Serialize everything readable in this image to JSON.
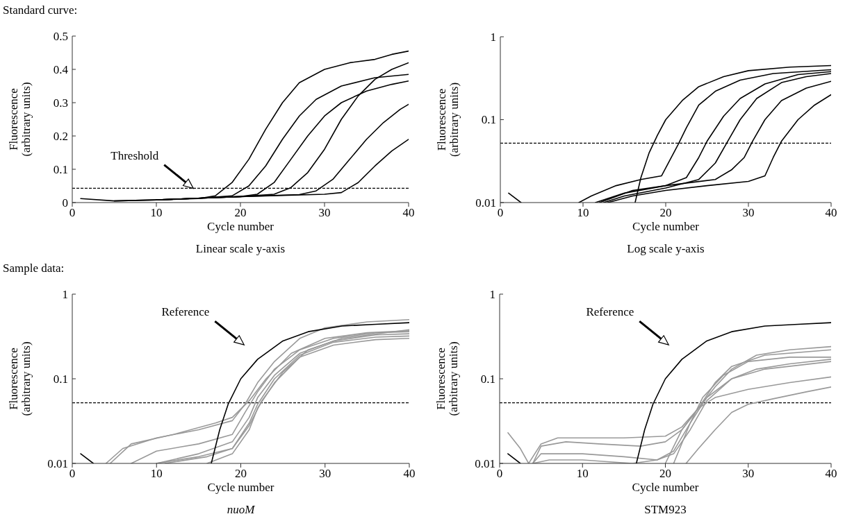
{
  "chart_data": [
    {
      "type": "line",
      "subtitle": "Linear scale y-axis",
      "xlabel": "Cycle number",
      "ylabel": "Fluorescence\n(arbitrary units)",
      "xlim": [
        0,
        40
      ],
      "xticks": [
        0,
        10,
        20,
        30,
        40
      ],
      "ylim": [
        0,
        0.5
      ],
      "yticks": [
        0,
        0.1,
        0.2,
        0.3,
        0.4,
        0.5
      ],
      "annotations": [
        "Standard curve:",
        "Threshold"
      ],
      "ref_lines": [
        {
          "axis": "y",
          "value": 0.043,
          "color": "#000000",
          "line_style": "dashed"
        }
      ],
      "series": [
        {
          "color": "#000000",
          "x": [
            1,
            5,
            10,
            15,
            17,
            19,
            21,
            23,
            25,
            27,
            30,
            33,
            36,
            38,
            40
          ],
          "values": [
            0.012,
            0.005,
            0.008,
            0.012,
            0.02,
            0.06,
            0.13,
            0.22,
            0.3,
            0.36,
            0.4,
            0.42,
            0.43,
            0.445,
            0.455
          ]
        },
        {
          "color": "#000000",
          "x": [
            5,
            10,
            15,
            19,
            21,
            23,
            25,
            27,
            29,
            32,
            36,
            40
          ],
          "values": [
            0.005,
            0.008,
            0.013,
            0.02,
            0.05,
            0.11,
            0.19,
            0.26,
            0.31,
            0.35,
            0.375,
            0.385
          ]
        },
        {
          "color": "#000000",
          "x": [
            10,
            15,
            20,
            22,
            24,
            26,
            28,
            30,
            32,
            35,
            38,
            40
          ],
          "values": [
            0.008,
            0.013,
            0.018,
            0.025,
            0.06,
            0.13,
            0.2,
            0.26,
            0.3,
            0.335,
            0.355,
            0.365
          ]
        },
        {
          "color": "#000000",
          "x": [
            10,
            15,
            20,
            24,
            26,
            28,
            30,
            32,
            34,
            36,
            38,
            40
          ],
          "values": [
            0.008,
            0.013,
            0.018,
            0.025,
            0.045,
            0.09,
            0.16,
            0.25,
            0.32,
            0.37,
            0.4,
            0.42
          ]
        },
        {
          "color": "#000000",
          "x": [
            10,
            20,
            27,
            29,
            31,
            33,
            35,
            37,
            39,
            40
          ],
          "values": [
            0.008,
            0.018,
            0.024,
            0.035,
            0.07,
            0.13,
            0.19,
            0.24,
            0.28,
            0.295
          ]
        },
        {
          "color": "#000000",
          "x": [
            10,
            20,
            30,
            32,
            34,
            36,
            38,
            40
          ],
          "values": [
            0.008,
            0.018,
            0.025,
            0.03,
            0.06,
            0.11,
            0.155,
            0.19
          ]
        }
      ]
    },
    {
      "type": "line",
      "subtitle": "Log scale y-axis",
      "xlabel": "Cycle number",
      "ylabel": "Fluorescence\n(arbitrary units)",
      "xlim": [
        0,
        40
      ],
      "xticks": [
        0,
        10,
        20,
        30,
        40
      ],
      "ylim": [
        0.01,
        1
      ],
      "yticks": [
        0.01,
        0.1,
        1
      ],
      "log": true,
      "ref_lines": [
        {
          "axis": "y",
          "value": 0.052,
          "color": "#000000",
          "line_style": "dashed"
        }
      ],
      "series": [
        {
          "color": "#000000",
          "x": [
            1,
            2.5
          ],
          "values": [
            0.013,
            0.01
          ]
        },
        {
          "color": "#000000",
          "x": [
            16.3,
            17,
            18,
            19,
            20,
            22,
            24,
            27,
            30,
            35,
            40
          ],
          "values": [
            0.01,
            0.02,
            0.04,
            0.065,
            0.1,
            0.17,
            0.25,
            0.33,
            0.39,
            0.43,
            0.45
          ]
        },
        {
          "color": "#000000",
          "x": [
            9.5,
            11,
            14,
            17,
            19.5,
            21.5,
            22.5,
            24,
            26,
            29,
            33,
            40
          ],
          "values": [
            0.01,
            0.012,
            0.016,
            0.019,
            0.021,
            0.05,
            0.08,
            0.15,
            0.22,
            0.3,
            0.36,
            0.4
          ]
        },
        {
          "color": "#000000",
          "x": [
            11.5,
            15,
            20,
            22.5,
            24,
            25,
            27,
            29,
            32,
            36,
            40
          ],
          "values": [
            0.01,
            0.013,
            0.016,
            0.02,
            0.035,
            0.055,
            0.11,
            0.18,
            0.27,
            0.35,
            0.38
          ]
        },
        {
          "color": "#000000",
          "x": [
            12.5,
            15,
            20,
            24,
            26,
            27.5,
            29,
            31,
            34,
            37,
            40
          ],
          "values": [
            0.01,
            0.012,
            0.015,
            0.019,
            0.03,
            0.055,
            0.1,
            0.18,
            0.28,
            0.33,
            0.36
          ]
        },
        {
          "color": "#000000",
          "x": [
            12,
            16,
            20,
            26,
            28,
            29.5,
            30.5,
            32,
            34,
            37,
            40
          ],
          "values": [
            0.01,
            0.014,
            0.016,
            0.019,
            0.025,
            0.035,
            0.055,
            0.1,
            0.17,
            0.24,
            0.29
          ]
        },
        {
          "color": "#000000",
          "x": [
            13,
            16,
            20,
            25,
            30,
            32,
            33,
            34,
            36,
            38,
            40
          ],
          "values": [
            0.01,
            0.012,
            0.014,
            0.016,
            0.018,
            0.021,
            0.035,
            0.055,
            0.1,
            0.15,
            0.2
          ]
        }
      ]
    },
    {
      "type": "line",
      "subtitle": "nuoM",
      "xlabel": "Cycle number",
      "ylabel": "Fluorescence\n(arbitrary units)",
      "xlim": [
        0,
        40
      ],
      "xticks": [
        0,
        10,
        20,
        30,
        40
      ],
      "ylim": [
        0.01,
        1
      ],
      "yticks": [
        0.01,
        0.1,
        1
      ],
      "log": true,
      "annotations": [
        "Sample data:",
        "Reference"
      ],
      "ref_lines": [
        {
          "axis": "y",
          "value": 0.052,
          "color": "#000000",
          "line_style": "dashed"
        }
      ],
      "series": [
        {
          "color": "#999999",
          "x": [
            4,
            6,
            10,
            15,
            19,
            20.5,
            22,
            24,
            27,
            30,
            35,
            40
          ],
          "values": [
            0.01,
            0.015,
            0.02,
            0.025,
            0.032,
            0.05,
            0.09,
            0.16,
            0.3,
            0.4,
            0.47,
            0.5
          ]
        },
        {
          "color": "#999999",
          "x": [
            4.5,
            7,
            12,
            17,
            19,
            21,
            23,
            26,
            30,
            35,
            40
          ],
          "values": [
            0.01,
            0.017,
            0.022,
            0.03,
            0.035,
            0.055,
            0.1,
            0.2,
            0.3,
            0.35,
            0.37
          ]
        },
        {
          "color": "#999999",
          "x": [
            7,
            10,
            15,
            19,
            20.5,
            22,
            24,
            27,
            31,
            36,
            40
          ],
          "values": [
            0.01,
            0.014,
            0.017,
            0.022,
            0.04,
            0.07,
            0.13,
            0.22,
            0.3,
            0.35,
            0.36
          ]
        },
        {
          "color": "#999999",
          "x": [
            10,
            15,
            19,
            21,
            22,
            24,
            27,
            31,
            36,
            40
          ],
          "values": [
            0.01,
            0.013,
            0.018,
            0.035,
            0.06,
            0.11,
            0.2,
            0.28,
            0.33,
            0.34
          ]
        },
        {
          "color": "#999999",
          "x": [
            10,
            15,
            19,
            21,
            22,
            24,
            27,
            31,
            36,
            40
          ],
          "values": [
            0.01,
            0.012,
            0.015,
            0.03,
            0.05,
            0.1,
            0.19,
            0.27,
            0.31,
            0.32
          ]
        },
        {
          "color": "#999999",
          "x": [
            16,
            19,
            21,
            22,
            24,
            27,
            31,
            36,
            40
          ],
          "values": [
            0.01,
            0.013,
            0.025,
            0.045,
            0.09,
            0.18,
            0.25,
            0.29,
            0.3
          ]
        },
        {
          "color": "#999999",
          "x": [
            11,
            16,
            19,
            21,
            22.5,
            25,
            28,
            32,
            40
          ],
          "values": [
            0.01,
            0.012,
            0.015,
            0.028,
            0.055,
            0.12,
            0.22,
            0.3,
            0.38
          ]
        },
        {
          "color": "#000000",
          "x": [
            1,
            2.5
          ],
          "values": [
            0.013,
            0.01
          ]
        },
        {
          "color": "#000000",
          "x": [
            16.5,
            17.5,
            18.5,
            20,
            22,
            25,
            28,
            32,
            36,
            40
          ],
          "values": [
            0.01,
            0.025,
            0.05,
            0.1,
            0.17,
            0.28,
            0.36,
            0.42,
            0.44,
            0.46
          ]
        }
      ]
    },
    {
      "type": "line",
      "subtitle": "STM923",
      "xlabel": "Cycle number",
      "ylabel": "Fluorescence\n(arbitrary units)",
      "xlim": [
        0,
        40
      ],
      "xticks": [
        0,
        10,
        20,
        30,
        40
      ],
      "ylim": [
        0.01,
        1
      ],
      "yticks": [
        0.01,
        0.1,
        1
      ],
      "log": true,
      "annotations": [
        "Reference"
      ],
      "ref_lines": [
        {
          "axis": "y",
          "value": 0.052,
          "color": "#000000",
          "line_style": "dashed"
        }
      ],
      "series": [
        {
          "color": "#999999",
          "x": [
            3.5,
            5,
            7,
            10,
            15,
            20,
            22,
            24,
            26,
            28,
            31,
            35,
            40
          ],
          "values": [
            0.01,
            0.017,
            0.02,
            0.02,
            0.02,
            0.021,
            0.027,
            0.045,
            0.08,
            0.13,
            0.19,
            0.22,
            0.24
          ]
        },
        {
          "color": "#999999",
          "x": [
            4,
            5,
            8,
            12,
            17,
            20,
            22,
            24,
            26,
            28,
            32,
            40
          ],
          "values": [
            0.01,
            0.016,
            0.018,
            0.017,
            0.016,
            0.018,
            0.025,
            0.045,
            0.09,
            0.14,
            0.19,
            0.22
          ]
        },
        {
          "color": "#999999",
          "x": [
            1,
            2.5,
            3.5
          ],
          "values": [
            0.023,
            0.015,
            0.01
          ]
        },
        {
          "color": "#999999",
          "x": [
            4,
            5,
            10,
            15,
            19,
            21,
            23,
            25,
            28,
            31,
            35,
            40
          ],
          "values": [
            0.01,
            0.013,
            0.013,
            0.012,
            0.011,
            0.013,
            0.025,
            0.055,
            0.1,
            0.13,
            0.15,
            0.17
          ]
        },
        {
          "color": "#999999",
          "x": [
            4,
            6,
            10,
            16,
            19,
            21,
            23,
            25,
            28,
            32,
            40
          ],
          "values": [
            0.01,
            0.011,
            0.011,
            0.01,
            0.011,
            0.014,
            0.03,
            0.06,
            0.1,
            0.13,
            0.16
          ]
        },
        {
          "color": "#999999",
          "x": [
            20,
            22,
            24,
            26,
            30,
            35,
            40
          ],
          "values": [
            0.01,
            0.025,
            0.045,
            0.06,
            0.075,
            0.09,
            0.105
          ]
        },
        {
          "color": "#999999",
          "x": [
            22.5,
            24,
            26,
            28,
            30,
            33,
            37,
            40
          ],
          "values": [
            0.01,
            0.015,
            0.025,
            0.04,
            0.05,
            0.058,
            0.07,
            0.08
          ]
        },
        {
          "color": "#999999",
          "x": [
            21,
            23,
            24.5,
            27,
            30,
            35,
            40
          ],
          "values": [
            0.01,
            0.03,
            0.06,
            0.11,
            0.16,
            0.18,
            0.18
          ]
        },
        {
          "color": "#000000",
          "x": [
            1,
            2.5
          ],
          "values": [
            0.013,
            0.01
          ]
        },
        {
          "color": "#000000",
          "x": [
            16.5,
            17.5,
            18.5,
            20,
            22,
            25,
            28,
            32,
            36,
            40
          ],
          "values": [
            0.01,
            0.025,
            0.05,
            0.1,
            0.17,
            0.28,
            0.36,
            0.42,
            0.44,
            0.46
          ]
        }
      ]
    }
  ]
}
